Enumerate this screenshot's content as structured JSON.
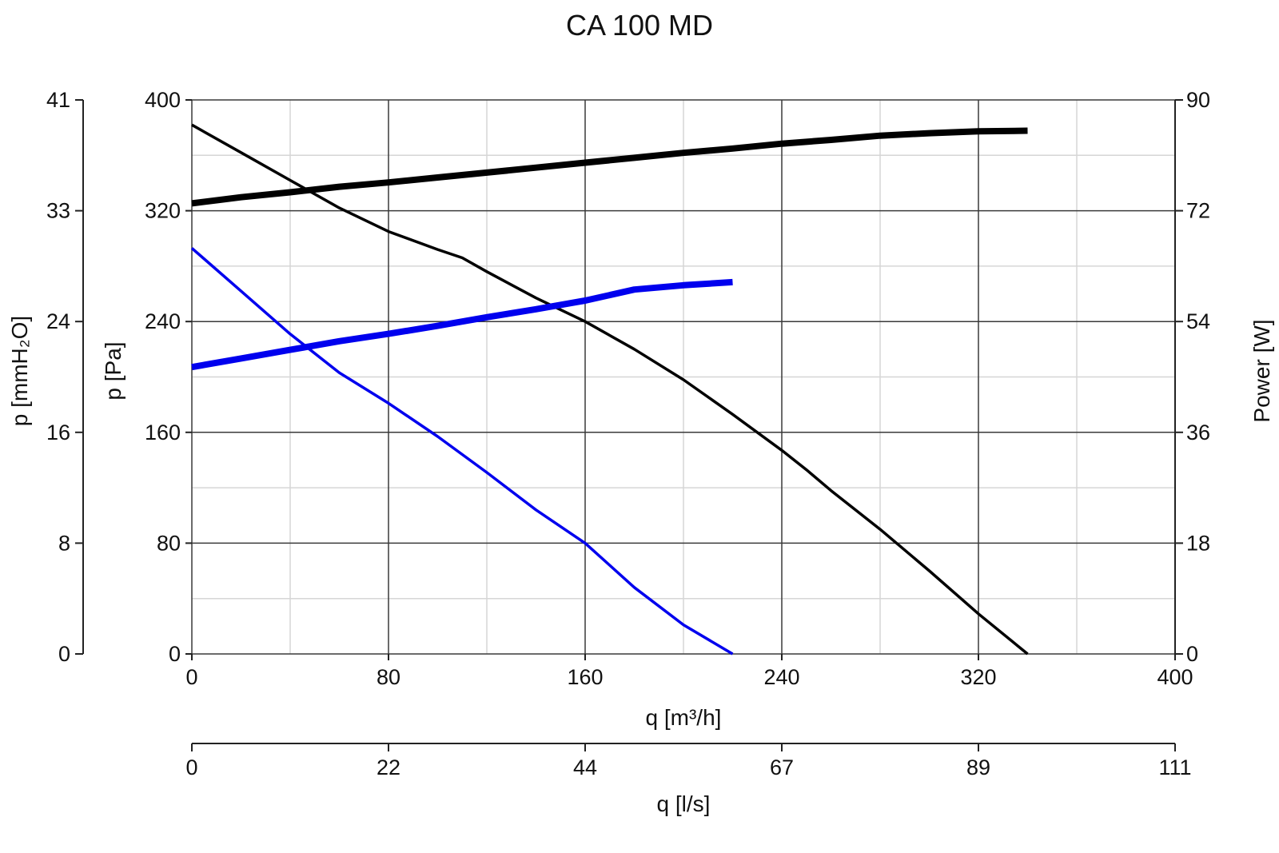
{
  "chart_data": {
    "type": "line",
    "title": "CA 100 MD",
    "xlabel": "q [m³/h]",
    "x2label": "q [l/s]",
    "ylabel": "p [Pa]",
    "y2label": "p [mmH₂O]",
    "y3label": "Power [W]",
    "xlim": [
      0,
      400
    ],
    "ylim": [
      0,
      400
    ],
    "powerlim": [
      0,
      90
    ],
    "x_ticks": [
      "0",
      "80",
      "160",
      "240",
      "320",
      "400"
    ],
    "y_ticks": [
      "0",
      "80",
      "160",
      "240",
      "320",
      "400"
    ],
    "mmh2o_ticks": [
      "0",
      "8",
      "16",
      "24",
      "33",
      "41"
    ],
    "power_ticks": [
      "0",
      "18",
      "36",
      "54",
      "72",
      "90"
    ],
    "ls_ticks": [
      "0",
      "22",
      "44",
      "67",
      "89",
      "111"
    ],
    "grid": true,
    "series": [
      {
        "axis": "pressure",
        "color": "#000000",
        "width": "thin",
        "x": [
          0,
          20,
          40,
          60,
          80,
          100,
          110,
          120,
          140,
          160,
          180,
          200,
          220,
          240,
          250,
          260,
          280,
          300,
          320,
          340
        ],
        "y": [
          382,
          362,
          342,
          322,
          305,
          292,
          286,
          276,
          257,
          240,
          220,
          198,
          173,
          147,
          133,
          118,
          90,
          60,
          29,
          0
        ]
      },
      {
        "axis": "power",
        "color": "#000000",
        "width": "thick",
        "x": [
          0,
          20,
          40,
          60,
          80,
          100,
          120,
          140,
          160,
          180,
          200,
          220,
          240,
          260,
          280,
          300,
          320,
          340
        ],
        "y": [
          73.2,
          74.2,
          75.0,
          75.9,
          76.6,
          77.4,
          78.2,
          79.0,
          79.8,
          80.6,
          81.4,
          82.1,
          82.9,
          83.5,
          84.2,
          84.6,
          84.9,
          85.0
        ]
      },
      {
        "axis": "pressure",
        "color": "#0000ee",
        "width": "thin",
        "x": [
          0,
          20,
          40,
          60,
          80,
          100,
          120,
          140,
          160,
          180,
          200,
          220
        ],
        "y": [
          293,
          262,
          231,
          203,
          181,
          157,
          131,
          104,
          80,
          48,
          21,
          0
        ]
      },
      {
        "axis": "power",
        "color": "#0000ee",
        "width": "thick",
        "x": [
          0,
          20,
          40,
          60,
          80,
          100,
          120,
          140,
          160,
          180,
          200,
          220
        ],
        "y": [
          46.6,
          48.0,
          49.4,
          50.8,
          52.0,
          53.3,
          54.7,
          56.0,
          57.4,
          59.2,
          59.9,
          60.4
        ]
      }
    ]
  }
}
